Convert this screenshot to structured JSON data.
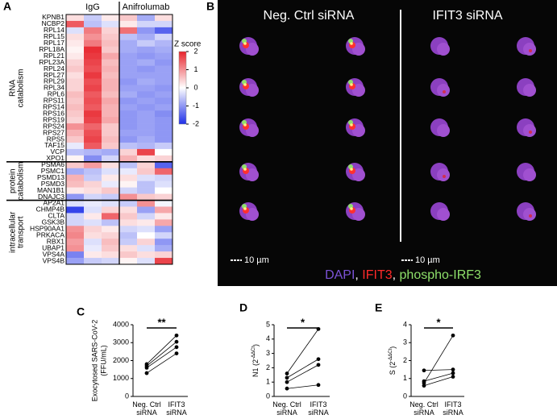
{
  "figure": {
    "panel_labels": [
      "A",
      "B",
      "C",
      "D",
      "E"
    ]
  },
  "micrograph": {
    "titles": [
      "Neg. Ctrl siRNA",
      "IFIT3 siRNA"
    ],
    "scale_bars": [
      "10 µm",
      "10 µm"
    ],
    "legend": [
      {
        "text": "DAPI",
        "color": "#7b52d6"
      },
      {
        "text": ", ",
        "color": "#ffffff"
      },
      {
        "text": "IFIT3",
        "color": "#ff2a2a"
      },
      {
        "text": ", ",
        "color": "#ffffff"
      },
      {
        "text": "phospho-IRF3",
        "color": "#8ee06a"
      }
    ]
  },
  "chart_data": [
    {
      "type": "heatmap",
      "column_groups": [
        {
          "label": "IgG",
          "count": 3
        },
        {
          "label": "Anifrolumab",
          "count": 3
        }
      ],
      "row_groups": [
        {
          "label": [
            "RNA",
            "catabolism"
          ],
          "count": 23
        },
        {
          "label": [
            "protein",
            "catabolism"
          ],
          "count": 6
        },
        {
          "label": [
            "intracellular",
            "transport"
          ],
          "count": 10
        }
      ],
      "rows": [
        "KPNB1",
        "NCBP2",
        "RPL14",
        "RPL15",
        "RPL17",
        "RPL18A",
        "RPL21",
        "RPL23A",
        "RPL24",
        "RPL27",
        "RPL29",
        "RPL34",
        "RPL6",
        "RPS11",
        "RPS14",
        "RPS16",
        "RPS19",
        "RPS24",
        "RPS27",
        "RPS5",
        "TAF15",
        "VCP",
        "XPO1",
        "PSMA6",
        "PSMC1",
        "PSMD13",
        "PSMD3",
        "MAN1B1",
        "DNAJC3",
        "AP2A1",
        "CHMP4B",
        "CLTA",
        "GSK3B",
        "HSP90AA1",
        "PRKACA",
        "RBX1",
        "UBAP1",
        "VPS4A",
        "VPS4B"
      ],
      "values": [
        [
          0.3,
          -0.5,
          0.2,
          0.5,
          -0.8,
          0.3
        ],
        [
          1.5,
          -0.6,
          -0.3,
          0.2,
          -0.4,
          -0.4
        ],
        [
          -0.3,
          1.2,
          0.4,
          1.3,
          -1.0,
          -1.5
        ],
        [
          0.3,
          1.0,
          0.5,
          -0.6,
          -0.8,
          -0.4
        ],
        [
          0.2,
          1.2,
          0.6,
          -0.8,
          -0.5,
          -0.7
        ],
        [
          0.1,
          1.9,
          0.5,
          -0.8,
          -0.9,
          -0.8
        ],
        [
          0.2,
          1.8,
          0.8,
          -0.9,
          -1.0,
          -0.9
        ],
        [
          0.4,
          1.7,
          0.6,
          -0.9,
          -0.8,
          -1.0
        ],
        [
          0.5,
          1.6,
          0.7,
          -0.9,
          -1.0,
          -0.9
        ],
        [
          0.3,
          1.8,
          0.6,
          -0.9,
          -0.9,
          -0.9
        ],
        [
          0.4,
          1.6,
          0.7,
          -1.0,
          -0.8,
          -0.9
        ],
        [
          0.4,
          1.7,
          0.7,
          -0.9,
          -0.9,
          -1.0
        ],
        [
          0.6,
          1.5,
          0.6,
          -0.8,
          -1.0,
          -0.9
        ],
        [
          0.5,
          1.6,
          0.8,
          -1.0,
          -0.9,
          -1.0
        ],
        [
          0.6,
          1.5,
          0.7,
          -0.9,
          -1.0,
          -0.9
        ],
        [
          0.5,
          1.8,
          0.7,
          -1.0,
          -0.9,
          -1.1
        ],
        [
          0.4,
          1.7,
          0.8,
          -1.0,
          -0.9,
          -1.0
        ],
        [
          1.0,
          1.4,
          0.5,
          -1.0,
          -0.9,
          -1.0
        ],
        [
          0.7,
          1.6,
          0.5,
          -0.9,
          -0.9,
          -1.0
        ],
        [
          0.5,
          1.7,
          0.6,
          -1.0,
          -0.8,
          -1.0
        ],
        [
          -0.2,
          1.5,
          0.5,
          -0.6,
          -0.7,
          -0.5
        ],
        [
          -0.6,
          -0.7,
          -0.8,
          0.4,
          1.7,
          0.0
        ],
        [
          0.1,
          -1.1,
          -0.4,
          0.7,
          0.3,
          0.4
        ],
        [
          0.5,
          0.9,
          0.3,
          -0.6,
          0.4,
          -1.5
        ],
        [
          -0.8,
          -0.6,
          -0.3,
          -0.2,
          0.5,
          1.4
        ],
        [
          0.7,
          -0.5,
          0.2,
          0.3,
          -0.3,
          -0.4
        ],
        [
          0.6,
          0.4,
          -0.2,
          0.1,
          -0.6,
          -0.3
        ],
        [
          0.2,
          0.3,
          0.5,
          -0.4,
          -0.6,
          0.0
        ],
        [
          -1.0,
          -0.4,
          -0.5,
          1.0,
          0.5,
          0.4
        ],
        [
          -0.3,
          -0.2,
          -0.3,
          -0.5,
          1.0,
          -0.1
        ],
        [
          -1.8,
          -0.3,
          0.4,
          0.3,
          -0.9,
          0.8
        ],
        [
          -0.4,
          0.2,
          1.4,
          0.5,
          -0.4,
          0.2
        ],
        [
          -0.4,
          -0.3,
          -0.6,
          0.3,
          0.2,
          0.8
        ],
        [
          1.0,
          0.4,
          0.2,
          -0.4,
          -0.3,
          -0.9
        ],
        [
          1.1,
          0.3,
          0.4,
          -0.6,
          0.0,
          -0.4
        ],
        [
          0.9,
          -0.3,
          0.6,
          -0.5,
          0.4,
          -1.0
        ],
        [
          1.0,
          -0.2,
          0.5,
          0.3,
          -0.3,
          -0.8
        ],
        [
          -1.2,
          0.2,
          0.3,
          0.5,
          0.3,
          0.4
        ],
        [
          -0.9,
          -0.5,
          -0.4,
          0.1,
          -0.3,
          1.7
        ]
      ],
      "zlim": [
        -2,
        2
      ],
      "zticks": [
        2,
        1,
        0,
        -1,
        -2
      ],
      "colorbar_title": "Z score",
      "colors": {
        "low": "#1f2fe8",
        "mid": "#ffffff",
        "high": "#e8232b"
      }
    },
    {
      "type": "paired",
      "categories": [
        "Neg. Ctrl siRNA",
        "IFIT3 siRNA"
      ],
      "ylabel": [
        "Exocytosed SARS-CoV-2",
        "(FFU/mL)"
      ],
      "ylim": [
        0,
        4000
      ],
      "yticks": [
        0,
        1000,
        2000,
        3000,
        4000
      ],
      "significance": "**",
      "series": [
        {
          "values": [
            1300,
            2400
          ],
          "color": "#000000"
        },
        {
          "values": [
            1600,
            2750
          ],
          "color": "#000000"
        },
        {
          "values": [
            1700,
            3050
          ],
          "color": "#000000"
        },
        {
          "values": [
            1800,
            3400
          ],
          "color": "#000000"
        }
      ]
    },
    {
      "type": "paired",
      "categories": [
        "Neg. Ctrl siRNA",
        "IFIT3 siRNA"
      ],
      "ylabel": {
        "base": "N1 (2",
        "sup": "-ΔΔCt",
        "end": ")"
      },
      "ylim": [
        0,
        5
      ],
      "yticks": [
        0,
        1,
        2,
        3,
        4,
        5
      ],
      "significance": "*",
      "series": [
        {
          "values": [
            1.0,
            2.2
          ],
          "color": "#000000"
        },
        {
          "values": [
            0.55,
            0.8
          ],
          "color": "#000000"
        },
        {
          "values": [
            1.6,
            4.7
          ],
          "color": "#000000"
        },
        {
          "values": [
            1.3,
            2.6
          ],
          "color": "#000000"
        }
      ]
    },
    {
      "type": "paired",
      "categories": [
        "Neg. Ctrl siRNA",
        "IFIT3 siRNA"
      ],
      "ylabel": {
        "base": "S (2",
        "sup": "-ΔΔCt",
        "end": ")"
      },
      "ylim": [
        0,
        4
      ],
      "yticks": [
        0,
        1,
        2,
        3,
        4
      ],
      "significance": "*",
      "series": [
        {
          "values": [
            0.6,
            1.1
          ],
          "color": "#000000"
        },
        {
          "values": [
            0.85,
            1.3
          ],
          "color": "#000000"
        },
        {
          "values": [
            1.45,
            1.5
          ],
          "color": "#000000"
        },
        {
          "values": [
            0.75,
            3.4
          ],
          "color": "#000000"
        }
      ]
    }
  ]
}
